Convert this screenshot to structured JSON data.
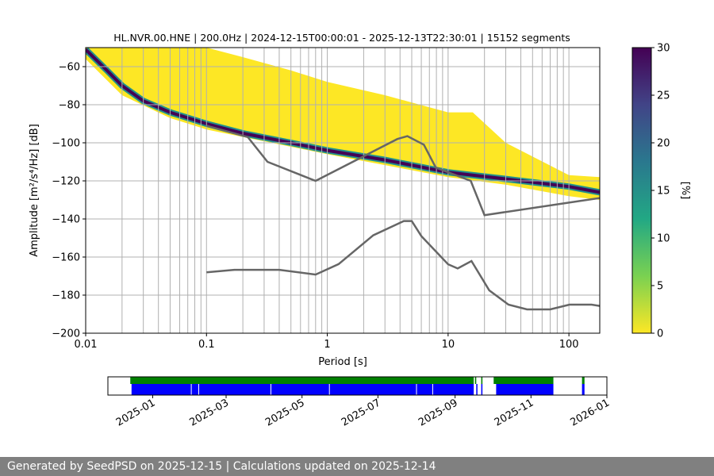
{
  "chart_data": {
    "type": "heatmap",
    "title": "HL.NVR.00.HNE | 200.0Hz | 2024-12-15T00:00:01 - 2025-12-13T22:30:01 | 15152 segments",
    "xlabel": "Period [s]",
    "ylabel": "Amplitude [m²/s⁴/Hz] [dB]",
    "xscale": "log",
    "xlim": [
      0.01,
      180
    ],
    "ylim": [
      -200,
      -50
    ],
    "xticks": [
      {
        "v": 0.01,
        "label": "0.01"
      },
      {
        "v": 0.1,
        "label": "0.1"
      },
      {
        "v": 1,
        "label": "1"
      },
      {
        "v": 10,
        "label": "10"
      },
      {
        "v": 100,
        "label": "100"
      }
    ],
    "yticks": [
      -60,
      -80,
      -100,
      -120,
      -140,
      -160,
      -180,
      -200
    ],
    "grid": true,
    "colorbar": {
      "label": "[%]",
      "min": 0,
      "max": 30,
      "ticks": [
        0,
        5,
        10,
        15,
        20,
        25,
        30
      ],
      "colormap": "viridis_r"
    },
    "pdf_mode": [
      [
        0.01,
        -51
      ],
      [
        0.015,
        -62
      ],
      [
        0.02,
        -70
      ],
      [
        0.03,
        -78
      ],
      [
        0.05,
        -84
      ],
      [
        0.1,
        -90
      ],
      [
        0.2,
        -95
      ],
      [
        0.5,
        -100
      ],
      [
        1,
        -104
      ],
      [
        3,
        -109
      ],
      [
        10,
        -115.5
      ],
      [
        30,
        -119
      ],
      [
        100,
        -123
      ],
      [
        180,
        -126
      ]
    ],
    "pdf_upper": [
      [
        0.01,
        -50
      ],
      [
        0.1,
        -50
      ],
      [
        0.2,
        -55
      ],
      [
        0.5,
        -62
      ],
      [
        1,
        -68
      ],
      [
        3,
        -75
      ],
      [
        10,
        -84
      ],
      [
        16,
        -84
      ],
      [
        30,
        -100
      ],
      [
        100,
        -117
      ],
      [
        180,
        -118
      ]
    ],
    "pdf_lower": [
      [
        0.01,
        -56
      ],
      [
        0.02,
        -75
      ],
      [
        0.05,
        -87
      ],
      [
        0.1,
        -93
      ],
      [
        1,
        -106
      ],
      [
        10,
        -118
      ],
      [
        30,
        -122
      ],
      [
        100,
        -128
      ],
      [
        180,
        -130
      ]
    ],
    "noise_models": [
      {
        "name": "NHNM",
        "color": "#666666",
        "points": [
          [
            0.1,
            -91
          ],
          [
            0.22,
            -97
          ],
          [
            0.32,
            -110
          ],
          [
            0.8,
            -120
          ],
          [
            3.8,
            -98
          ],
          [
            4.6,
            -96.5
          ],
          [
            6.3,
            -101
          ],
          [
            7.9,
            -113
          ],
          [
            15.4,
            -120
          ],
          [
            20,
            -138
          ],
          [
            180,
            -129
          ]
        ]
      },
      {
        "name": "NLNM",
        "color": "#666666",
        "points": [
          [
            0.1,
            -168
          ],
          [
            0.17,
            -166.7
          ],
          [
            0.4,
            -166.7
          ],
          [
            0.8,
            -169.2
          ],
          [
            1.24,
            -163.7
          ],
          [
            2.4,
            -148.6
          ],
          [
            4.3,
            -141.1
          ],
          [
            5,
            -141.1
          ],
          [
            6,
            -149
          ],
          [
            10,
            -163.8
          ],
          [
            12,
            -166
          ],
          [
            15.6,
            -162.1
          ],
          [
            21.9,
            -177.5
          ],
          [
            31.6,
            -185
          ],
          [
            45,
            -187.5
          ],
          [
            70,
            -187.5
          ],
          [
            101,
            -185
          ],
          [
            154,
            -185
          ],
          [
            180,
            -185.7
          ]
        ]
      }
    ],
    "timeline": {
      "xlim": [
        "2024-11-26",
        "2026-01-01"
      ],
      "xticks": [
        "2025-01",
        "2025-03",
        "2025-05",
        "2025-07",
        "2025-09",
        "2025-11",
        "2026-01"
      ],
      "green_spans": [
        [
          "2024-12-14",
          "2025-09-16"
        ],
        [
          "2025-09-17",
          "2025-09-18"
        ],
        [
          "2025-09-22",
          "2025-09-23"
        ],
        [
          "2025-10-02",
          "2025-11-19"
        ],
        [
          "2025-12-12",
          "2025-12-14"
        ]
      ],
      "blue_spans": [
        [
          "2024-12-15",
          "2025-09-16"
        ],
        [
          "2025-09-18",
          "2025-09-19"
        ],
        [
          "2025-09-22",
          "2025-09-23"
        ],
        [
          "2025-10-04",
          "2025-11-19"
        ],
        [
          "2025-12-12",
          "2025-12-14"
        ]
      ],
      "blue_gaps": [
        "2025-02-01",
        "2025-02-07",
        "2025-04-06",
        "2025-05-23",
        "2025-08-01",
        "2025-08-14"
      ],
      "colors": {
        "green": "#008000",
        "blue": "#0000ff"
      }
    }
  },
  "footer": "Generated by SeedPSD on 2025-12-15 | Calculations updated on 2025-12-14"
}
